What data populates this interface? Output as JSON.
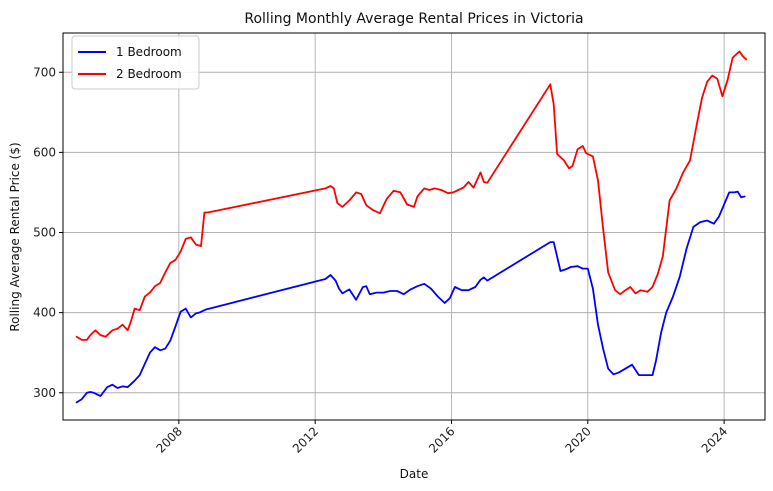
{
  "chart_data": {
    "type": "line",
    "title": "Rolling Monthly Average Rental Prices in Victoria",
    "xlabel": "Date",
    "ylabel": "Rolling Average Rental Price ($)",
    "x_ticks": [
      "2008",
      "2012",
      "2016",
      "2020",
      "2024"
    ],
    "y_ticks": [
      300,
      400,
      500,
      600,
      700
    ],
    "xlim": [
      2004.6,
      2025.2
    ],
    "ylim": [
      266,
      749
    ],
    "grid": true,
    "legend_position": "top-left",
    "series": [
      {
        "name": "1 Bedroom",
        "color": "#0000ff",
        "x": [
          2005.0,
          2005.15,
          2005.3,
          2005.4,
          2005.5,
          2005.7,
          2005.9,
          2006.05,
          2006.2,
          2006.35,
          2006.5,
          2006.6,
          2006.7,
          2006.85,
          2007.0,
          2007.15,
          2007.3,
          2007.45,
          2007.6,
          2007.75,
          2007.9,
          2008.05,
          2008.2,
          2008.35,
          2008.5,
          2008.6,
          2008.8,
          2008.9,
          2012.3,
          2012.45,
          2012.6,
          2012.7,
          2012.8,
          2013.0,
          2013.2,
          2013.4,
          2013.5,
          2013.6,
          2013.8,
          2014.0,
          2014.2,
          2014.4,
          2014.6,
          2014.8,
          2015.0,
          2015.2,
          2015.4,
          2015.6,
          2015.8,
          2015.95,
          2016.1,
          2016.3,
          2016.5,
          2016.7,
          2016.85,
          2016.95,
          2017.05,
          2018.9,
          2019.0,
          2019.2,
          2019.35,
          2019.5,
          2019.7,
          2019.85,
          2020.0,
          2020.15,
          2020.3,
          2020.45,
          2020.6,
          2020.75,
          2020.9,
          2021.1,
          2021.3,
          2021.5,
          2021.7,
          2021.9,
          2022.0,
          2022.15,
          2022.3,
          2022.5,
          2022.7,
          2022.9,
          2023.1,
          2023.3,
          2023.5,
          2023.7,
          2023.85,
          2024.0,
          2024.15,
          2024.3,
          2024.4,
          2024.5,
          2024.6
        ],
        "values": [
          288,
          292,
          300,
          301,
          300,
          296,
          307,
          310,
          306,
          308,
          307,
          311,
          315,
          322,
          336,
          350,
          357,
          353,
          355,
          365,
          383,
          401,
          405,
          394,
          399,
          400,
          404,
          405,
          442,
          447,
          440,
          430,
          424,
          429,
          416,
          432,
          433,
          423,
          425,
          425,
          427,
          427,
          423,
          429,
          433,
          436,
          430,
          420,
          412,
          418,
          432,
          428,
          428,
          432,
          441,
          444,
          440,
          488,
          488,
          452,
          454,
          457,
          458,
          455,
          455,
          430,
          385,
          355,
          330,
          323,
          325,
          330,
          335,
          322,
          322,
          322,
          340,
          375,
          400,
          420,
          445,
          480,
          507,
          513,
          515,
          511,
          520,
          535,
          550,
          550,
          551,
          544,
          545
        ],
        "width": 1.8
      },
      {
        "name": "2 Bedroom",
        "color": "#ff0000",
        "x": [
          2005.0,
          2005.15,
          2005.3,
          2005.4,
          2005.55,
          2005.7,
          2005.85,
          2006.05,
          2006.2,
          2006.35,
          2006.5,
          2006.6,
          2006.7,
          2006.85,
          2007.0,
          2007.15,
          2007.3,
          2007.45,
          2007.6,
          2007.75,
          2007.9,
          2008.05,
          2008.2,
          2008.35,
          2008.5,
          2008.65,
          2008.75,
          2008.85,
          2012.3,
          2012.45,
          2012.55,
          2012.65,
          2012.8,
          2013.0,
          2013.2,
          2013.35,
          2013.5,
          2013.7,
          2013.9,
          2014.1,
          2014.3,
          2014.5,
          2014.7,
          2014.9,
          2015.0,
          2015.2,
          2015.35,
          2015.5,
          2015.7,
          2015.9,
          2016.05,
          2016.2,
          2016.35,
          2016.5,
          2016.65,
          2016.85,
          2016.95,
          2017.05,
          2018.9,
          2019.0,
          2019.1,
          2019.3,
          2019.45,
          2019.55,
          2019.7,
          2019.85,
          2019.95,
          2020.15,
          2020.3,
          2020.45,
          2020.6,
          2020.8,
          2020.95,
          2021.1,
          2021.25,
          2021.4,
          2021.55,
          2021.75,
          2021.9,
          2022.05,
          2022.2,
          2022.4,
          2022.6,
          2022.8,
          2023.0,
          2023.2,
          2023.35,
          2023.5,
          2023.65,
          2023.8,
          2023.95,
          2024.1,
          2024.25,
          2024.35,
          2024.45,
          2024.55,
          2024.65
        ],
        "values": [
          370,
          366,
          366,
          372,
          378,
          372,
          370,
          378,
          380,
          385,
          378,
          390,
          405,
          403,
          420,
          425,
          433,
          437,
          450,
          462,
          466,
          476,
          492,
          494,
          485,
          483,
          525,
          525,
          555,
          558,
          555,
          537,
          532,
          540,
          550,
          548,
          534,
          528,
          524,
          542,
          552,
          550,
          535,
          532,
          545,
          555,
          553,
          555,
          553,
          549,
          550,
          553,
          556,
          563,
          556,
          575,
          563,
          562,
          685,
          660,
          598,
          590,
          580,
          583,
          604,
          608,
          599,
          595,
          565,
          505,
          450,
          428,
          423,
          428,
          432,
          424,
          428,
          426,
          432,
          448,
          470,
          540,
          555,
          575,
          590,
          635,
          668,
          688,
          696,
          692,
          670,
          690,
          718,
          722,
          726,
          720,
          716
        ],
        "width": 1.8
      }
    ]
  }
}
